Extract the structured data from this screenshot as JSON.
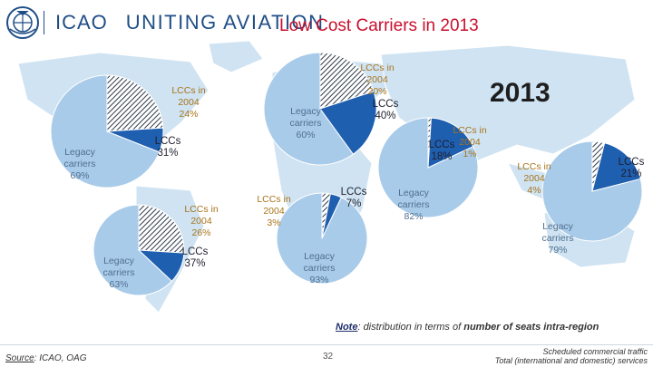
{
  "header": {
    "logo_text": "ICAO",
    "tagline": "UNITING AVIATION",
    "title": "Low Cost Carriers in 2013"
  },
  "year_label": "2013",
  "colors": {
    "legacy": "#a9cbea",
    "lcc": "#1f5fb0",
    "lcc_2004": "#8a9bb3",
    "title": "#c8102e",
    "map_land": "#cfe3f2",
    "map_ocean": "#ffffff"
  },
  "chart_data": [
    {
      "type": "pie",
      "region": "north-america-left",
      "slices": [
        {
          "name": "Legacy carriers",
          "value": 69,
          "label": "Legacy\ncarriers\n69%"
        },
        {
          "name": "LCCs",
          "value": 31,
          "label": "LCCs\n31%"
        }
      ],
      "lcc_2004": {
        "value": 24,
        "label": "LCCs in\n2004\n24%"
      }
    },
    {
      "type": "pie",
      "region": "europe",
      "slices": [
        {
          "name": "Legacy carriers",
          "value": 60,
          "label": "Legacy\ncarriers\n60%"
        },
        {
          "name": "LCCs",
          "value": 40,
          "label": "LCCs\n40%"
        }
      ],
      "lcc_2004": {
        "value": 20,
        "label": "LCCs in\n2004\n20%"
      }
    },
    {
      "type": "pie",
      "region": "latin-america",
      "slices": [
        {
          "name": "Legacy carriers",
          "value": 63,
          "label": "Legacy\ncarriers\n63%"
        },
        {
          "name": "LCCs",
          "value": 37,
          "label": "LCCs\n37%"
        }
      ],
      "lcc_2004": {
        "value": 26,
        "label": "LCCs in\n2004\n26%"
      }
    },
    {
      "type": "pie",
      "region": "africa",
      "slices": [
        {
          "name": "Legacy carriers",
          "value": 93,
          "label": "Legacy\ncarriers\n93%"
        },
        {
          "name": "LCCs",
          "value": 7,
          "label": "LCCs\n7%"
        }
      ],
      "lcc_2004": {
        "value": 3,
        "label": "LCCs in\n2004\n3%"
      }
    },
    {
      "type": "pie",
      "region": "asia",
      "slices": [
        {
          "name": "Legacy carriers",
          "value": 82,
          "label": "Legacy\ncarriers\n82%"
        },
        {
          "name": "LCCs",
          "value": 18,
          "label": "LCCs\n18%"
        }
      ],
      "lcc_2004": {
        "value": 1,
        "label": "LCCs in\n2004\n1%"
      }
    },
    {
      "type": "pie",
      "region": "oceania",
      "slices": [
        {
          "name": "Legacy carriers",
          "value": 79,
          "label": "Legacy\ncarriers\n79%"
        },
        {
          "name": "LCCs",
          "value": 21,
          "label": "LCCs\n21%"
        }
      ],
      "lcc_2004": {
        "value": 4,
        "label": "LCCs in\n2004\n4%"
      }
    }
  ],
  "note": {
    "prefix": "Note",
    "text_a": ": distribution in terms of ",
    "text_b": "number of seats intra-region"
  },
  "footer": {
    "source_prefix": "Source",
    "source_text": ": ICAO, OAG",
    "page_number": "32",
    "traffic_line1": "Scheduled commercial traffic",
    "traffic_line2": "Total (international and domestic) services"
  }
}
